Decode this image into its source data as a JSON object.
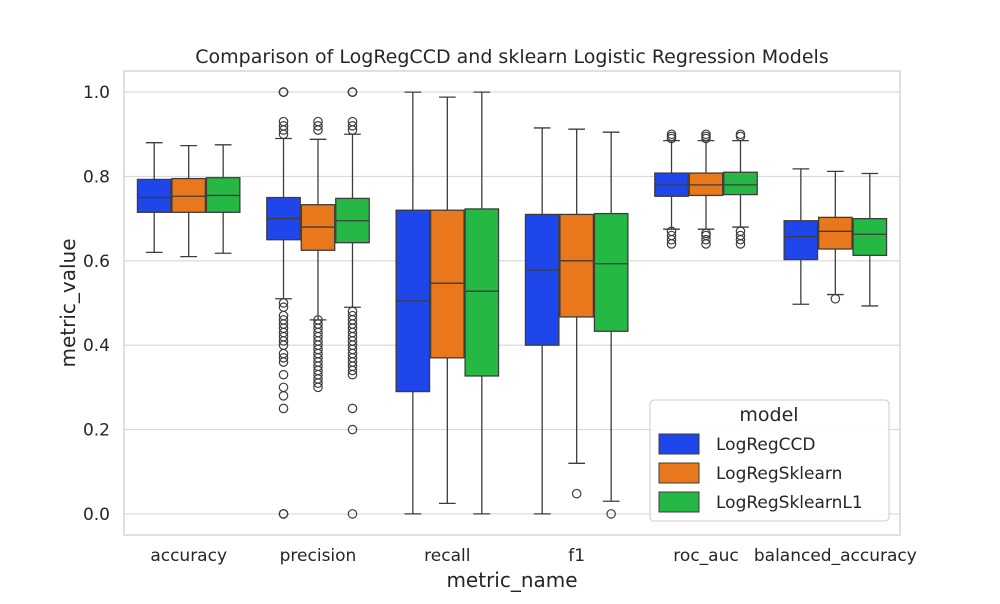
{
  "chart_data": {
    "type": "box",
    "title": "Comparison of LogRegCCD and sklearn Logistic Regression Models",
    "xlabel": "metric_name",
    "ylabel": "metric_value",
    "categories": [
      "accuracy",
      "precision",
      "recall",
      "f1",
      "roc_auc",
      "balanced_accuracy"
    ],
    "ylim": [
      -0.05,
      1.05
    ],
    "yticks": [
      0.0,
      0.2,
      0.4,
      0.6,
      0.8,
      1.0
    ],
    "ytick_labels": [
      "0.0",
      "0.2",
      "0.4",
      "0.6",
      "0.8",
      "1.0"
    ],
    "grid": "horizontal",
    "legend": {
      "title": "model",
      "placement": "lower-right"
    },
    "colors": {
      "LogRegCCD": "#1f46ea",
      "LogRegSklearn": "#e8781b",
      "LogRegSklearnL1": "#26b845",
      "line": "#3d3d3d",
      "grid": "#d9d9d9",
      "frame": "#cccccc"
    },
    "series": [
      {
        "name": "LogRegCCD",
        "boxes": [
          {
            "min": 0.62,
            "q1": 0.715,
            "median": 0.75,
            "q3": 0.793,
            "max": 0.88,
            "outliers": []
          },
          {
            "min": 0.51,
            "q1": 0.65,
            "median": 0.7,
            "q3": 0.75,
            "max": 0.89,
            "outliers": [
              1.0,
              1.0,
              1.0,
              0.93,
              0.92,
              0.91,
              0.9,
              0.5,
              0.49,
              0.47,
              0.46,
              0.45,
              0.44,
              0.43,
              0.42,
              0.41,
              0.4,
              0.38,
              0.37,
              0.36,
              0.33,
              0.3,
              0.28,
              0.25,
              0.0,
              0.0,
              0.0
            ]
          },
          {
            "min": 0.0,
            "q1": 0.29,
            "median": 0.505,
            "q3": 0.72,
            "max": 1.0,
            "outliers": []
          },
          {
            "min": 0.0,
            "q1": 0.4,
            "median": 0.578,
            "q3": 0.71,
            "max": 0.915,
            "outliers": []
          },
          {
            "min": 0.675,
            "q1": 0.753,
            "median": 0.78,
            "q3": 0.808,
            "max": 0.885,
            "outliers": [
              0.9,
              0.89,
              0.895,
              0.67,
              0.66,
              0.65,
              0.64
            ]
          },
          {
            "min": 0.497,
            "q1": 0.603,
            "median": 0.657,
            "q3": 0.695,
            "max": 0.818,
            "outliers": []
          }
        ]
      },
      {
        "name": "LogRegSklearn",
        "boxes": [
          {
            "min": 0.61,
            "q1": 0.715,
            "median": 0.753,
            "q3": 0.795,
            "max": 0.873,
            "outliers": []
          },
          {
            "min": 0.46,
            "q1": 0.625,
            "median": 0.68,
            "q3": 0.733,
            "max": 0.888,
            "outliers": [
              0.93,
              0.92,
              0.91,
              0.46,
              0.45,
              0.44,
              0.43,
              0.42,
              0.41,
              0.4,
              0.39,
              0.38,
              0.37,
              0.36,
              0.35,
              0.34,
              0.33,
              0.32,
              0.31,
              0.3
            ]
          },
          {
            "min": 0.025,
            "q1": 0.37,
            "median": 0.547,
            "q3": 0.72,
            "max": 0.988,
            "outliers": []
          },
          {
            "min": 0.12,
            "q1": 0.467,
            "median": 0.6,
            "q3": 0.71,
            "max": 0.912,
            "outliers": [
              0.048
            ]
          },
          {
            "min": 0.675,
            "q1": 0.755,
            "median": 0.78,
            "q3": 0.808,
            "max": 0.885,
            "outliers": [
              0.9,
              0.895,
              0.89,
              0.665,
              0.66,
              0.65,
              0.64
            ]
          },
          {
            "min": 0.52,
            "q1": 0.628,
            "median": 0.67,
            "q3": 0.703,
            "max": 0.812,
            "outliers": [
              0.51
            ]
          }
        ]
      },
      {
        "name": "LogRegSklearnL1",
        "boxes": [
          {
            "min": 0.618,
            "q1": 0.715,
            "median": 0.755,
            "q3": 0.797,
            "max": 0.875,
            "outliers": []
          },
          {
            "min": 0.49,
            "q1": 0.643,
            "median": 0.695,
            "q3": 0.748,
            "max": 0.9,
            "outliers": [
              1.0,
              1.0,
              1.0,
              0.93,
              0.92,
              0.91,
              0.48,
              0.47,
              0.46,
              0.45,
              0.44,
              0.43,
              0.42,
              0.41,
              0.4,
              0.39,
              0.38,
              0.37,
              0.36,
              0.35,
              0.34,
              0.33,
              0.25,
              0.2,
              0.0
            ]
          },
          {
            "min": 0.0,
            "q1": 0.327,
            "median": 0.528,
            "q3": 0.723,
            "max": 1.0,
            "outliers": []
          },
          {
            "min": 0.03,
            "q1": 0.433,
            "median": 0.593,
            "q3": 0.712,
            "max": 0.905,
            "outliers": [
              0.0
            ]
          },
          {
            "min": 0.68,
            "q1": 0.757,
            "median": 0.78,
            "q3": 0.81,
            "max": 0.885,
            "outliers": [
              0.9,
              0.895,
              0.67,
              0.66,
              0.65,
              0.64
            ]
          },
          {
            "min": 0.493,
            "q1": 0.613,
            "median": 0.663,
            "q3": 0.7,
            "max": 0.807,
            "outliers": []
          }
        ]
      }
    ]
  }
}
